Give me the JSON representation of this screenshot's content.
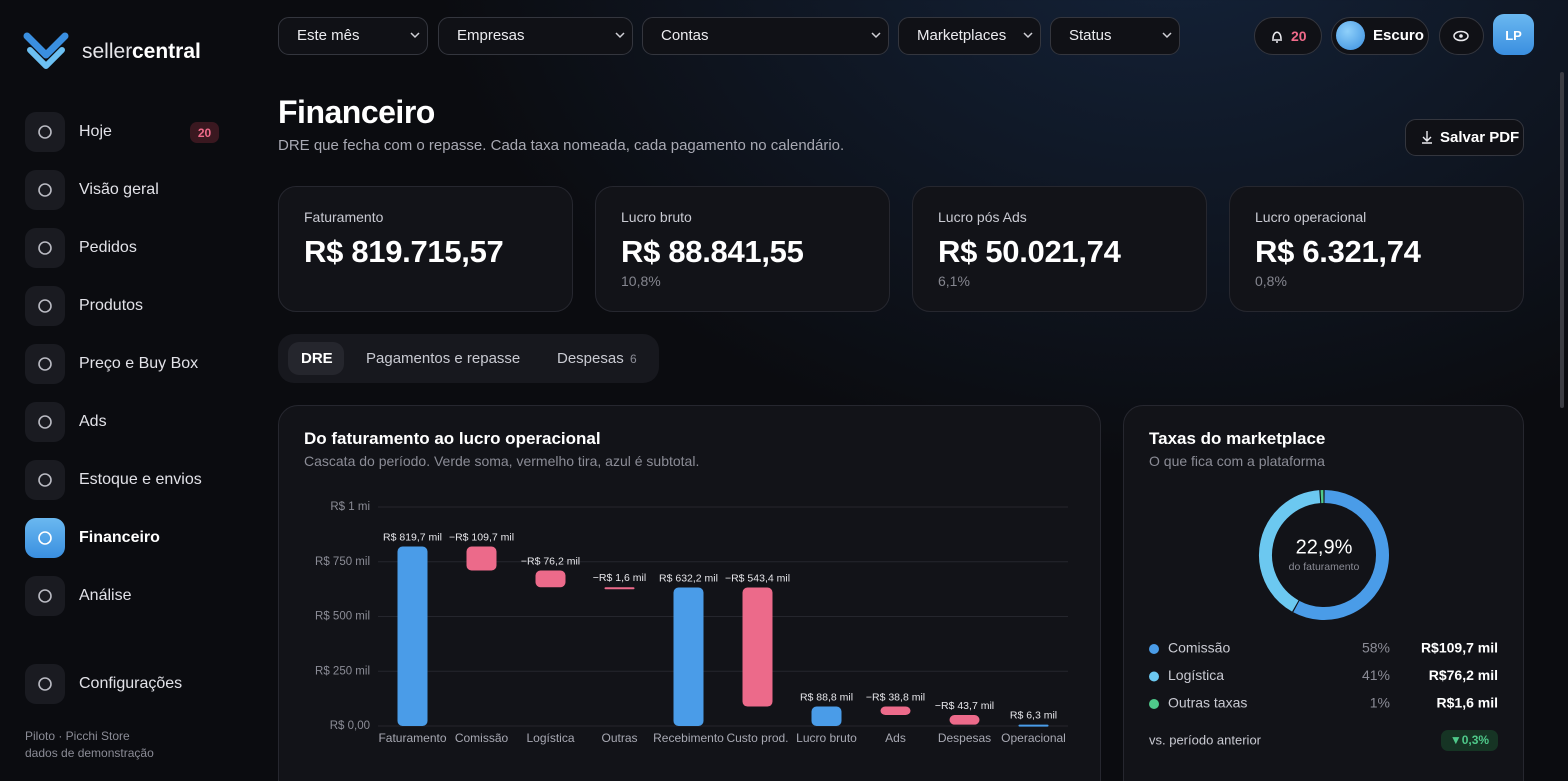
{
  "brand": {
    "light": "seller",
    "bold": "central"
  },
  "nav": [
    {
      "label": "Hoje",
      "badge": "20"
    },
    {
      "label": "Visão geral"
    },
    {
      "label": "Pedidos"
    },
    {
      "label": "Produtos"
    },
    {
      "label": "Preço e Buy Box"
    },
    {
      "label": "Ads"
    },
    {
      "label": "Estoque e envios"
    },
    {
      "label": "Financeiro",
      "active": true
    },
    {
      "label": "Análise"
    }
  ],
  "settings_nav": "Configurações",
  "footer": [
    "Piloto · Picchi Store",
    "dados de demonstração"
  ],
  "filters": [
    "Este mês",
    "Empresas",
    "Contas",
    "Marketplaces",
    "Status"
  ],
  "notifications": "20",
  "theme": "Escuro",
  "avatar": "LP",
  "page": {
    "title": "Financeiro",
    "subtitle": "DRE que fecha com o repasse. Cada taxa nomeada, cada pagamento no calendário.",
    "action": "Salvar PDF"
  },
  "kpis": [
    {
      "label": "Faturamento",
      "value": "R$ 819.715,57"
    },
    {
      "label": "Lucro bruto",
      "value": "R$ 88.841,55",
      "share": "10,8%"
    },
    {
      "label": "Lucro pós Ads",
      "value": "R$ 50.021,74",
      "share": "6,1%"
    },
    {
      "label": "Lucro operacional",
      "value": "R$ 6.321,74",
      "share": "0,8%"
    }
  ],
  "tabs": [
    {
      "label": "DRE",
      "active": true
    },
    {
      "label": "Pagamentos e repasse"
    },
    {
      "label": "Despesas",
      "count": "6"
    }
  ],
  "chart_data": [
    {
      "type": "waterfall",
      "title": "Do faturamento ao lucro operacional",
      "subtitle": "Cascata do período. Verde soma, vermelho tira, azul é subtotal.",
      "categories": [
        "Faturamento",
        "Comissão",
        "Logística",
        "Outras",
        "Recebimento",
        "Custo prod.",
        "Lucro bruto",
        "Ads",
        "Despesas",
        "Operacional"
      ],
      "values": [
        819700,
        -109700,
        -76200,
        -1600,
        632200,
        -543400,
        88800,
        -38800,
        -43700,
        6300
      ],
      "value_labels": [
        "R$ 819,7 mil",
        "−R$ 109,7 mil",
        "−R$ 76,2 mil",
        "−R$ 1,6 mil",
        "R$ 632,2 mil",
        "−R$ 543,4 mil",
        "R$ 88,8 mil",
        "−R$ 38,8 mil",
        "−R$ 43,7 mil",
        "R$ 6,3 mil"
      ],
      "positive_color": "#4a9ce8",
      "negative_color": "#ec6a8a",
      "ylim": [
        0,
        1000000
      ],
      "yticks": [
        {
          "value": 0,
          "label": "R$ 0,00"
        },
        {
          "value": 250000,
          "label": "R$ 250 mil"
        },
        {
          "value": 500000,
          "label": "R$ 500 mil"
        },
        {
          "value": 750000,
          "label": "R$ 750 mil"
        },
        {
          "value": 1000000,
          "label": "R$ 1 mi"
        }
      ],
      "grid": true
    },
    {
      "type": "donut",
      "title": "Taxas do marketplace",
      "subtitle": "O que fica com a plataforma",
      "center_label": "22,9%",
      "center_caption": "do faturamento",
      "categories": [
        "Comissão",
        "Logística",
        "Outras taxas"
      ],
      "values": [
        58,
        41,
        1
      ],
      "value_labels": [
        "58%",
        "41%",
        "1%"
      ],
      "amounts": [
        "R$109,7 mil",
        "R$76,2 mil",
        "R$1,6 mil"
      ],
      "colors": [
        "#4a9ce8",
        "#6cc8f0",
        "#4fc98a"
      ],
      "comparison_label": "vs. período anterior",
      "comparison_value": "▼0,3%"
    }
  ]
}
